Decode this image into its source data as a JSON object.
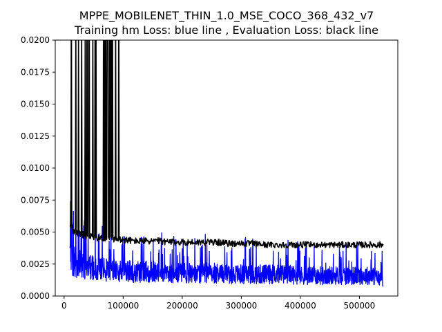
{
  "chart_data": {
    "type": "line",
    "title": "MPPE_MOBILENET_THIN_1.0_MSE_COCO_368_432_v7",
    "subtitle": "Training hm Loss: blue line   , Evaluation Loss: black line",
    "xlabel": "",
    "ylabel": "",
    "xlim": [
      -15000,
      565000
    ],
    "ylim": [
      0,
      0.02
    ],
    "xticks": [
      0,
      100000,
      200000,
      300000,
      400000,
      500000
    ],
    "yticks": [
      0.0,
      0.0025,
      0.005,
      0.0075,
      0.01,
      0.0125,
      0.015,
      0.0175,
      0.02
    ],
    "xtick_labels": [
      "0",
      "100000",
      "200000",
      "300000",
      "400000",
      "500000"
    ],
    "ytick_labels": [
      "0.0000",
      "0.0025",
      "0.0050",
      "0.0075",
      "0.0100",
      "0.0125",
      "0.0150",
      "0.0175",
      "0.0200"
    ],
    "grid": false,
    "legend": "none",
    "series": [
      {
        "color": "#0000ff",
        "x": [
          10000,
          15000,
          20000,
          25000,
          30000,
          40000,
          50000,
          60000,
          70000,
          80000,
          90000,
          100000,
          120000,
          140000,
          160000,
          180000,
          200000,
          220000,
          240000,
          260000,
          280000,
          300000,
          320000,
          340000,
          360000,
          380000,
          400000,
          420000,
          440000,
          460000,
          480000,
          500000,
          520000,
          540000
        ],
        "values": [
          0.0035,
          0.0028,
          0.0026,
          0.0025,
          0.0024,
          0.0023,
          0.0022,
          0.0021,
          0.0021,
          0.002,
          0.002,
          0.002,
          0.0019,
          0.0019,
          0.0019,
          0.0018,
          0.0018,
          0.0018,
          0.0018,
          0.0018,
          0.0017,
          0.0017,
          0.0017,
          0.0017,
          0.0017,
          0.0017,
          0.0016,
          0.0016,
          0.0016,
          0.0016,
          0.0016,
          0.0016,
          0.0016,
          0.0013
        ]
      },
      {
        "color": "#000000",
        "x": [
          10000,
          15000,
          20000,
          30000,
          40000,
          50000,
          60000,
          70000,
          80000,
          90000,
          100000,
          120000,
          140000,
          160000,
          180000,
          200000,
          220000,
          240000,
          260000,
          280000,
          300000,
          320000,
          340000,
          360000,
          380000,
          400000,
          420000,
          440000,
          460000,
          480000,
          500000,
          520000,
          540000
        ],
        "values": [
          0.0055,
          0.0052,
          0.005,
          0.0048,
          0.0047,
          0.0046,
          0.0045,
          0.0045,
          0.0044,
          0.0044,
          0.0044,
          0.0043,
          0.0043,
          0.0043,
          0.0042,
          0.0042,
          0.0042,
          0.0042,
          0.0042,
          0.0041,
          0.0041,
          0.0041,
          0.004,
          0.004,
          0.004,
          0.004,
          0.004,
          0.004,
          0.004,
          0.004,
          0.004,
          0.004,
          0.004
        ]
      }
    ]
  }
}
